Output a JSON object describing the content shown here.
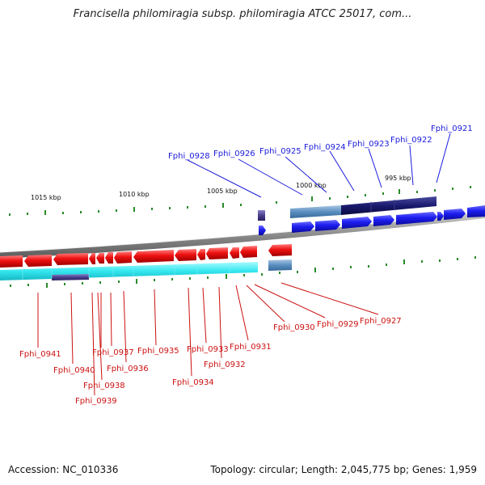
{
  "title": "Francisella philomiragia subsp. philomiragia ATCC 25017, com...",
  "accession": "Accession: NC_010336",
  "summary": "Topology: circular; Length: 2,045,775 bp; Genes: 1,959",
  "scale_labels": [
    "1015 kbp",
    "1010 kbp",
    "1005 kbp",
    "1000 kbp",
    "995 kbp"
  ],
  "forward_genes": [
    "Fphi_0928",
    "Fphi_0926",
    "Fphi_0925",
    "Fphi_0924",
    "Fphi_0923",
    "Fphi_0922",
    "Fphi_0921"
  ],
  "reverse_genes": [
    "Fphi_0941",
    "Fphi_0940",
    "Fphi_0939",
    "Fphi_0938",
    "Fphi_0937",
    "Fphi_0936",
    "Fphi_0935",
    "Fphi_0934",
    "Fphi_0933",
    "Fphi_0932",
    "Fphi_0931",
    "Fphi_0930",
    "Fphi_0929",
    "Fphi_0927"
  ],
  "colors": {
    "forward_gene": "#1a1aee",
    "reverse_gene": "#ee1111",
    "forward_label": "#1a1adb",
    "reverse_label": "#cc1111",
    "backbone": "#8c8c8c",
    "tick": "#2a8a2a",
    "cyan_track": "#33e6ee",
    "steel_track": "#5a8fc0",
    "navy_track": "#1a1a6e",
    "purple_track": "#4a3f8c"
  }
}
